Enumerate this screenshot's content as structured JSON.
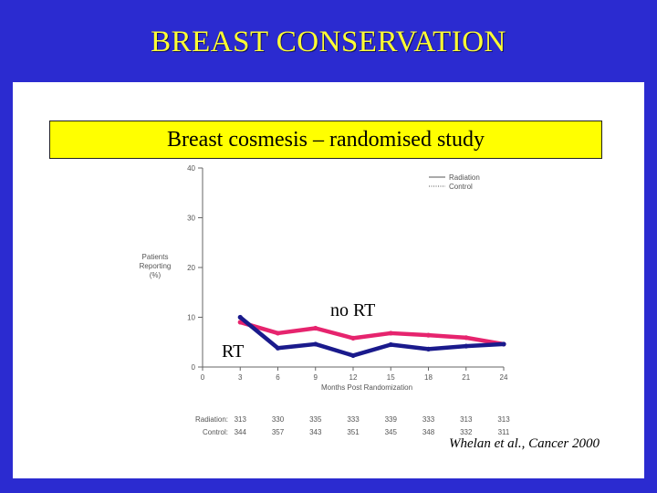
{
  "slide": {
    "title": "BREAST CONSERVATION",
    "subtitle": "Breast cosmesis – randomised study",
    "citation": "Whelan et al., Cancer 2000"
  },
  "colors": {
    "background": "#2b2bd0",
    "title_text": "#ffff33",
    "subtitle_box": "#ffff00",
    "rt_line": "#1a1a8c",
    "no_rt_line": "#e6246e"
  },
  "chart_data": {
    "type": "line",
    "ylabel": "Patients Reporting (%)",
    "ylabel_lines": [
      "Patients",
      "Reporting",
      "(%)"
    ],
    "xlabel": "Months Post Randomization",
    "x": [
      3,
      6,
      9,
      12,
      15,
      18,
      21,
      24
    ],
    "x_ticks": [
      "0",
      "3",
      "6",
      "9",
      "12",
      "15",
      "18",
      "21",
      "24"
    ],
    "y_ticks": [
      "0",
      "10",
      "20",
      "30",
      "40"
    ],
    "xlim": [
      0,
      24
    ],
    "ylim": [
      0,
      40
    ],
    "legend": [
      "Radiation",
      "Control"
    ],
    "legend_position": "top-right",
    "series": [
      {
        "name": "Radiation",
        "annotation": "RT",
        "values": [
          10,
          3.8,
          4.6,
          2.3,
          4.5,
          3.6,
          4.2,
          4.6
        ]
      },
      {
        "name": "Control",
        "annotation": "no RT",
        "values": [
          9,
          6.8,
          7.8,
          5.8,
          6.8,
          6.4,
          5.9,
          4.6
        ]
      }
    ],
    "patients_at_risk": {
      "Radiation": {
        "label": "Radiation:",
        "counts": [
          "313",
          "330",
          "335",
          "333",
          "339",
          "333",
          "313",
          "313"
        ]
      },
      "Control": {
        "label": "Control:",
        "counts": [
          "344",
          "357",
          "343",
          "351",
          "345",
          "348",
          "332",
          "311"
        ]
      }
    }
  }
}
